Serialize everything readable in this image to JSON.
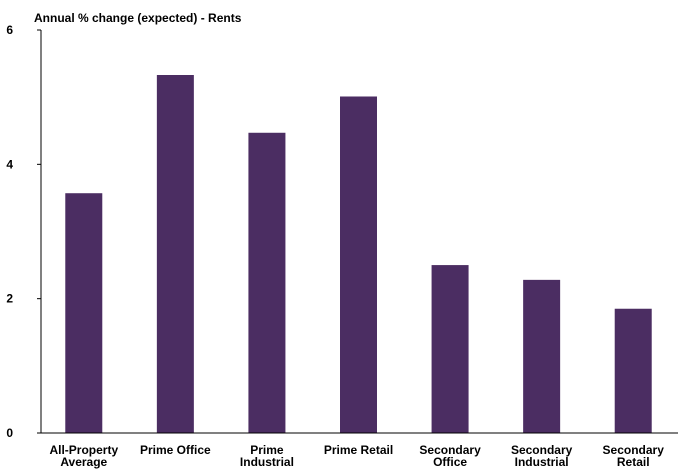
{
  "chart_data": {
    "type": "bar",
    "title": "Annual % change (expected) - Rents",
    "xlabel": "",
    "ylabel": "",
    "ylim": [
      0,
      6
    ],
    "yticks": [
      "0",
      "2",
      "4",
      "6"
    ],
    "categories": [
      [
        "All-Property",
        "Average"
      ],
      [
        "Prime Office"
      ],
      [
        "Prime",
        "Industrial"
      ],
      [
        "Prime Retail"
      ],
      [
        "Secondary",
        "Office"
      ],
      [
        "Secondary",
        "Industrial"
      ],
      [
        "Secondary",
        "Retail"
      ]
    ],
    "values": [
      3.57,
      5.33,
      4.47,
      5.01,
      2.5,
      2.28,
      1.85
    ],
    "grid": false,
    "legend": "none",
    "bar_color": "#4b2d62",
    "axis_color": "#000000"
  }
}
